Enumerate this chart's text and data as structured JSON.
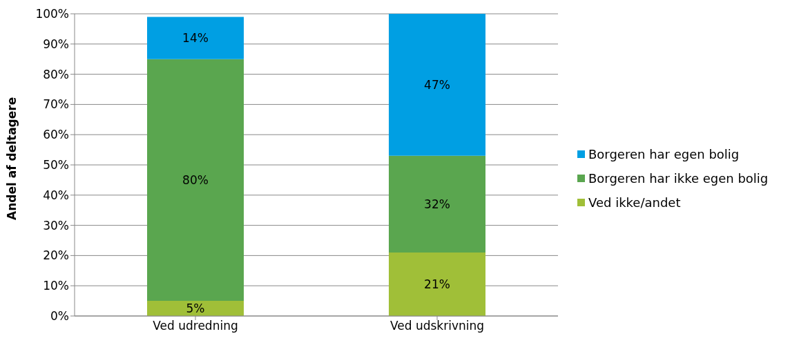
{
  "chart_data": {
    "type": "bar",
    "stacked": true,
    "ylabel": "Andel af deltagere",
    "categories": [
      "Ved udredning",
      "Ved udskrivning"
    ],
    "series": [
      {
        "name": "Ved ikke/andet",
        "color": "#a0bf38",
        "values": [
          5,
          21
        ],
        "value_labels": [
          "5%",
          "21%"
        ]
      },
      {
        "name": "Borgeren har ikke egen bolig",
        "color": "#5aa64f",
        "values": [
          80,
          32
        ],
        "value_labels": [
          "80%",
          "32%"
        ]
      },
      {
        "name": "Borgeren har egen bolig",
        "color": "#009fe3",
        "values": [
          14,
          47
        ],
        "value_labels": [
          "14%",
          "47%"
        ]
      }
    ],
    "ylim": [
      0,
      100
    ],
    "yticks": [
      {
        "value": 0,
        "label": "0%"
      },
      {
        "value": 10,
        "label": "10%"
      },
      {
        "value": 20,
        "label": "20%"
      },
      {
        "value": 30,
        "label": "30%"
      },
      {
        "value": 40,
        "label": "40%"
      },
      {
        "value": 50,
        "label": "50%"
      },
      {
        "value": 60,
        "label": "60%"
      },
      {
        "value": 70,
        "label": "70%"
      },
      {
        "value": 80,
        "label": "80%"
      },
      {
        "value": 90,
        "label": "90%"
      },
      {
        "value": 100,
        "label": "100%"
      }
    ],
    "grid": "y",
    "legend": "right"
  }
}
